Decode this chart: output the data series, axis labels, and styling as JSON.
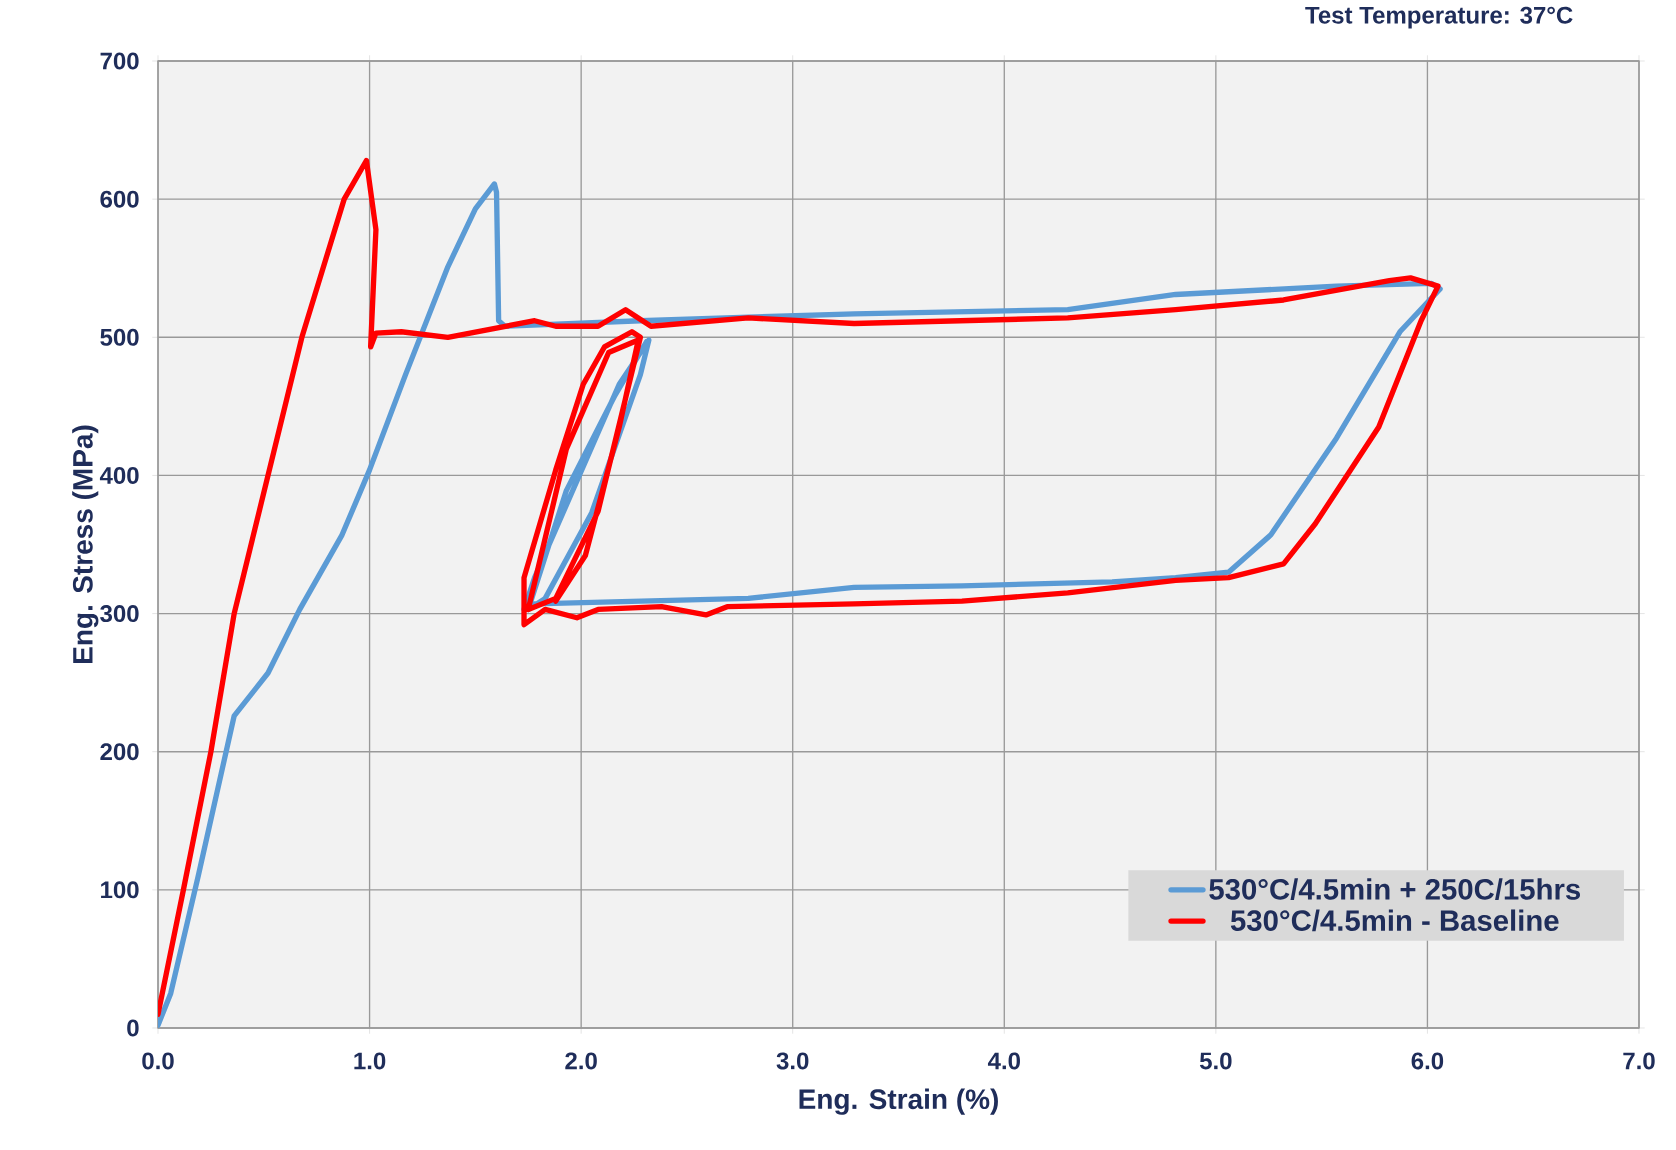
{
  "chart_data": {
    "type": "line",
    "title": "Test Temperature: 37°C",
    "xlabel": "Eng. Strain (%)",
    "ylabel": "Eng. Stress (MPa)",
    "xlim": [
      0,
      7
    ],
    "ylim": [
      0,
      700
    ],
    "xticks": [
      {
        "value": 0,
        "label": "0.0"
      },
      {
        "value": 1,
        "label": "1.0"
      },
      {
        "value": 2,
        "label": "2.0"
      },
      {
        "value": 3,
        "label": "3.0"
      },
      {
        "value": 4,
        "label": "4.0"
      },
      {
        "value": 5,
        "label": "5.0"
      },
      {
        "value": 6,
        "label": "6.0"
      },
      {
        "value": 7,
        "label": "7.0"
      }
    ],
    "yticks": [
      0,
      100,
      200,
      300,
      400,
      500,
      600,
      700
    ],
    "grid": true,
    "legend": "bottom right",
    "marker": "none",
    "line_style": "solid",
    "series": [
      {
        "name": "530°C/4.5min + 250C/15hrs",
        "color": "#5b9bd5",
        "x": [
          0,
          0.06,
          0.19,
          0.36,
          0.52,
          0.67,
          0.87,
          1.0,
          1.17,
          1.37,
          1.5,
          1.59,
          1.6,
          1.61,
          1.64,
          2.28,
          3.29,
          4.3,
          4.81,
          5.57,
          6.02,
          6.06,
          5.87,
          5.57,
          5.26,
          5.06,
          4.81,
          4.51,
          3.8,
          3.29,
          2.79,
          1.78,
          1.73,
          1.78,
          1.98,
          2.18,
          2.32,
          2.28,
          2.05,
          1.83,
          1.75,
          1.93,
          2.16,
          2.31
        ],
        "values": [
          2,
          25,
          110,
          226,
          257,
          303,
          357,
          404,
          473,
          551,
          593,
          611,
          605,
          512,
          508,
          512,
          517,
          520,
          531,
          537,
          539,
          535,
          504,
          427,
          357,
          330,
          326,
          323,
          320,
          319,
          311,
          307,
          303,
          326,
          396,
          466,
          498,
          473,
          373,
          311,
          303,
          389,
          458,
          497
        ]
      },
      {
        "name": "530°C/4.5min - Baseline",
        "color": "#ff0000",
        "x": [
          0,
          0.12,
          0.25,
          0.36,
          0.52,
          0.68,
          0.88,
          0.985,
          1.03,
          1.005,
          1.03,
          1.15,
          1.37,
          1.78,
          1.88,
          2.08,
          2.21,
          2.33,
          2.79,
          3.29,
          4.3,
          4.81,
          5.32,
          5.82,
          5.92,
          6.05,
          5.97,
          5.77,
          5.47,
          5.32,
          5.06,
          4.81,
          4.3,
          3.8,
          3.29,
          2.69,
          2.59,
          2.38,
          2.08,
          1.98,
          1.83,
          1.73,
          1.73,
          1.88,
          2.01,
          2.11,
          2.24,
          2.28,
          2.08,
          1.88,
          1.75,
          1.93,
          2.13,
          2.27,
          2.18,
          2.02,
          1.88
        ],
        "values": [
          10,
          100,
          200,
          300,
          400,
          500,
          600,
          628,
          578,
          493,
          503,
          504,
          500,
          512,
          508,
          508,
          520,
          508,
          514,
          510,
          514,
          520,
          527,
          541,
          543,
          537,
          512,
          435,
          365,
          336,
          326,
          324,
          315,
          309,
          307,
          305,
          299,
          305,
          303,
          297,
          303,
          292,
          326,
          404,
          466,
          493,
          504,
          500,
          374,
          311,
          303,
          419,
          489,
          498,
          435,
          342,
          309
        ]
      }
    ]
  }
}
